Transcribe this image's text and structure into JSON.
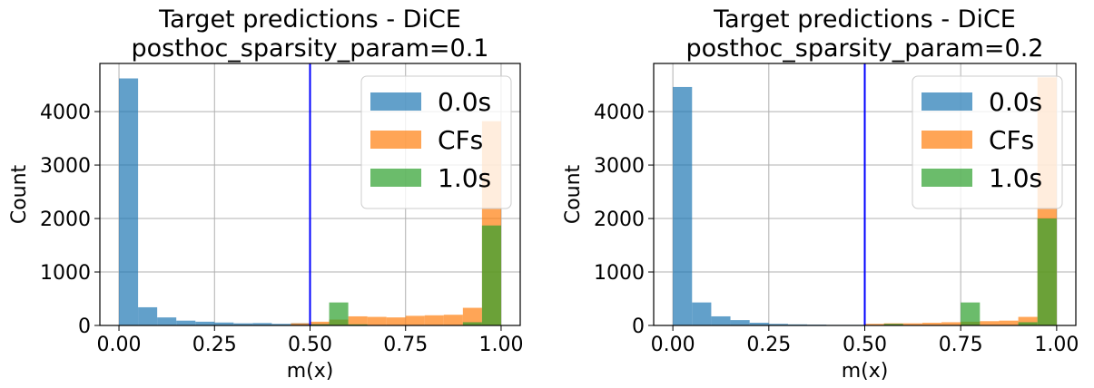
{
  "chart_data": [
    {
      "type": "bar",
      "title_line1": "Target predictions - DiCE",
      "title_line2": "posthoc_sparsity_param=0.1",
      "xlabel": "m(x)",
      "ylabel": "Count",
      "xlim": [
        -0.05,
        1.05
      ],
      "ylim": [
        0,
        4900
      ],
      "xticks": [
        "0.00",
        "0.25",
        "0.50",
        "0.75",
        "1.00"
      ],
      "xtick_values": [
        0.0,
        0.25,
        0.5,
        0.75,
        1.0
      ],
      "yticks": [
        "0",
        "1000",
        "2000",
        "3000",
        "4000"
      ],
      "ytick_values": [
        0,
        1000,
        2000,
        3000,
        4000
      ],
      "grid": true,
      "threshold_line": 0.5,
      "threshold_color": "#0000ff",
      "legend_position": "top-right",
      "bin_width": 0.05,
      "series": [
        {
          "name": "0.0s",
          "color": "#1f77b4",
          "bin_starts": [
            0.0,
            0.05,
            0.1,
            0.15,
            0.2,
            0.25,
            0.3,
            0.35,
            0.4,
            0.45,
            0.5
          ],
          "values": [
            4620,
            340,
            150,
            90,
            70,
            55,
            40,
            45,
            30,
            40,
            30
          ]
        },
        {
          "name": "CFs",
          "color": "#ff7f0e",
          "bin_starts": [
            0.45,
            0.5,
            0.55,
            0.6,
            0.65,
            0.7,
            0.75,
            0.8,
            0.85,
            0.9,
            0.95
          ],
          "values": [
            40,
            70,
            110,
            170,
            160,
            150,
            180,
            190,
            200,
            330,
            3820
          ]
        },
        {
          "name": "1.0s",
          "color": "#2ca02c",
          "bin_starts": [
            0.5,
            0.55,
            0.6,
            0.9,
            0.95
          ],
          "values": [
            20,
            430,
            20,
            60,
            1870
          ]
        }
      ]
    },
    {
      "type": "bar",
      "title_line1": "Target predictions - DiCE",
      "title_line2": "posthoc_sparsity_param=0.2",
      "xlabel": "m(x)",
      "ylabel": "Count",
      "xlim": [
        -0.05,
        1.05
      ],
      "ylim": [
        0,
        4900
      ],
      "xticks": [
        "0.00",
        "0.25",
        "0.50",
        "0.75",
        "1.00"
      ],
      "xtick_values": [
        0.0,
        0.25,
        0.5,
        0.75,
        1.0
      ],
      "yticks": [
        "0",
        "1000",
        "2000",
        "3000",
        "4000"
      ],
      "ytick_values": [
        0,
        1000,
        2000,
        3000,
        4000
      ],
      "grid": true,
      "threshold_line": 0.5,
      "threshold_color": "#0000ff",
      "legend_position": "top-right",
      "bin_width": 0.05,
      "series": [
        {
          "name": "0.0s",
          "color": "#1f77b4",
          "bin_starts": [
            0.0,
            0.05,
            0.1,
            0.15,
            0.2,
            0.25,
            0.3,
            0.35,
            0.4,
            0.45
          ],
          "values": [
            4460,
            430,
            170,
            100,
            50,
            30,
            20,
            15,
            10,
            10
          ]
        },
        {
          "name": "CFs",
          "color": "#ff7f0e",
          "bin_starts": [
            0.5,
            0.55,
            0.6,
            0.65,
            0.7,
            0.75,
            0.8,
            0.85,
            0.9,
            0.95
          ],
          "values": [
            30,
            40,
            40,
            50,
            60,
            70,
            80,
            90,
            160,
            4640
          ]
        },
        {
          "name": "1.0s",
          "color": "#2ca02c",
          "bin_starts": [
            0.55,
            0.75,
            0.9,
            0.95
          ],
          "values": [
            30,
            430,
            60,
            2000
          ]
        }
      ]
    }
  ]
}
